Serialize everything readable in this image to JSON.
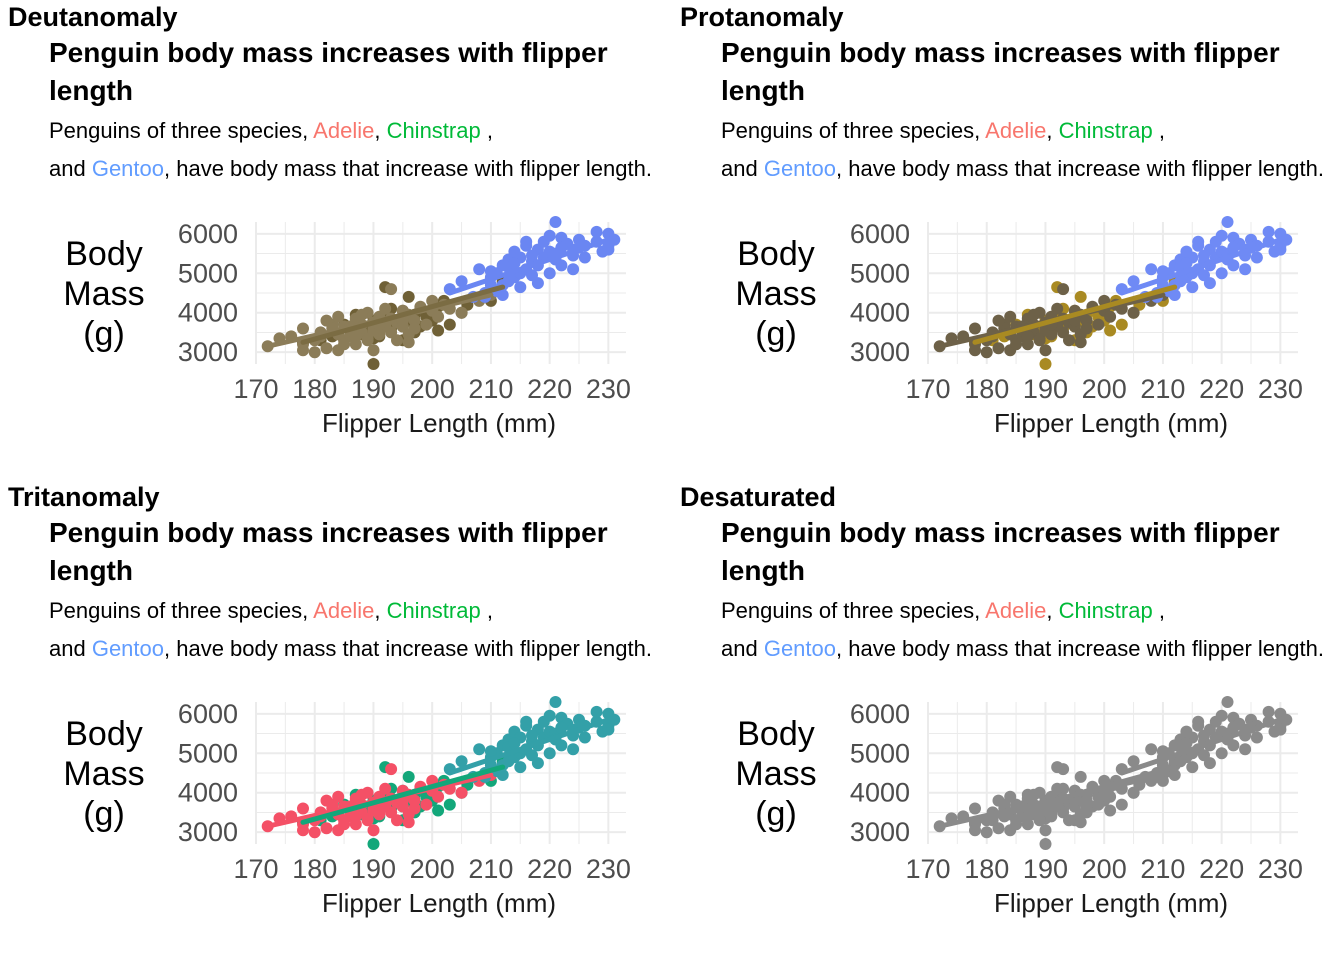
{
  "panels": [
    {
      "label": "Deutanomaly",
      "colors": {
        "adelie": "#8b7c58",
        "chinstrap": "#6f6036",
        "gentoo": "#6a86f2",
        "adelie_line": "#8b7c58",
        "chinstrap_line": "#7b6c43",
        "gentoo_line": "#6a86f2"
      }
    },
    {
      "label": "Protanomaly",
      "colors": {
        "adelie": "#6d6148",
        "chinstrap": "#a98a22",
        "gentoo": "#6f8af5",
        "adelie_line": "#6d6148",
        "chinstrap_line": "#a98a22",
        "gentoo_line": "#6f8af5"
      }
    },
    {
      "label": "Tritanomaly",
      "colors": {
        "adelie": "#f45066",
        "chinstrap": "#13a77a",
        "gentoo": "#33a0a8",
        "adelie_line": "#f45066",
        "chinstrap_line": "#13a77a",
        "gentoo_line": "#33a0a8"
      }
    },
    {
      "label": "Desaturated",
      "colors": {
        "adelie": "#8a8a8a",
        "chinstrap": "#8a8a8a",
        "gentoo": "#8a8a8a",
        "adelie_line": "#8a8a8a",
        "chinstrap_line": "#8a8a8a",
        "gentoo_line": "#8a8a8a"
      }
    }
  ],
  "plot": {
    "title": "Penguin body mass increases with flipper length",
    "subtitle_pre": "Penguins of three species, ",
    "adelie_label": "Adelie",
    "sep1": ", ",
    "chinstrap_label": "Chinstrap",
    "sep2": " ,",
    "and_label": "and ",
    "gentoo_label": "Gentoo",
    "subtitle_post": ", have body mass that increase with flipper length.",
    "species_colors": {
      "adelie": "#f8766d",
      "chinstrap": "#00ba38",
      "gentoo": "#619cff"
    },
    "ylabel": "Body\nMass\n(g)",
    "xlabel": "Flipper Length (mm)"
  },
  "chart_data": {
    "type": "scatter",
    "xlabel": "Flipper Length (mm)",
    "ylabel": "Body Mass (g)",
    "xlim": [
      170,
      233
    ],
    "ylim": [
      2700,
      6300
    ],
    "x_ticks": [
      170,
      180,
      190,
      200,
      210,
      220,
      230
    ],
    "y_ticks": [
      3000,
      4000,
      5000,
      6000
    ],
    "grid": true,
    "series": [
      {
        "name": "Adelie",
        "x": [
          172,
          174,
          176,
          178,
          178,
          180,
          181,
          182,
          183,
          184,
          184,
          185,
          185,
          186,
          186,
          187,
          187,
          188,
          188,
          189,
          189,
          190,
          190,
          190,
          191,
          191,
          192,
          192,
          193,
          193,
          194,
          195,
          195,
          196,
          196,
          197,
          198,
          199,
          200,
          201,
          202,
          203,
          205,
          208,
          210,
          181,
          183,
          186,
          189,
          192,
          195,
          184,
          187,
          190,
          193,
          196,
          180,
          182,
          185,
          188,
          191,
          194,
          197,
          200,
          178,
          186
        ],
        "y": [
          3150,
          3350,
          3400,
          3200,
          3600,
          3300,
          3500,
          3100,
          3700,
          3450,
          3900,
          3300,
          3650,
          3550,
          3400,
          3850,
          3200,
          3700,
          3500,
          4000,
          3350,
          3600,
          3750,
          3050,
          3450,
          3900,
          3650,
          4100,
          3500,
          3850,
          3750,
          4050,
          3650,
          3450,
          3950,
          3800,
          4150,
          3700,
          4050,
          3900,
          4200,
          4100,
          4000,
          4300,
          4450,
          3400,
          3600,
          3550,
          3300,
          3700,
          3800,
          3050,
          3400,
          3550,
          4600,
          3250,
          3000,
          3800,
          3200,
          3950,
          3700,
          3300,
          3600,
          4300,
          3050,
          3650
        ],
        "fit": [
          [
            172,
            3150
          ],
          [
            210,
            4450
          ]
        ]
      },
      {
        "name": "Chinstrap",
        "x": [
          178,
          181,
          183,
          185,
          187,
          187,
          188,
          189,
          190,
          190,
          191,
          192,
          193,
          193,
          194,
          195,
          195,
          196,
          196,
          197,
          197,
          198,
          198,
          199,
          200,
          201,
          201,
          202,
          203,
          205,
          206,
          210,
          212,
          190,
          195,
          192
        ],
        "y": [
          3250,
          3300,
          3400,
          3700,
          3550,
          3950,
          3450,
          3650,
          3800,
          3350,
          3400,
          3950,
          3600,
          4100,
          3750,
          3650,
          4050,
          3800,
          4400,
          3500,
          3950,
          4100,
          3650,
          3900,
          3800,
          4150,
          3550,
          4300,
          3700,
          4000,
          4200,
          4300,
          4800,
          2700,
          3300,
          4650
        ],
        "fit": [
          [
            178,
            3250
          ],
          [
            212,
            4650
          ]
        ]
      },
      {
        "name": "Gentoo",
        "x": [
          203,
          205,
          207,
          208,
          209,
          210,
          210,
          211,
          211,
          212,
          212,
          213,
          213,
          214,
          214,
          215,
          215,
          215,
          216,
          216,
          217,
          217,
          218,
          218,
          219,
          219,
          220,
          220,
          221,
          221,
          222,
          222,
          223,
          224,
          224,
          225,
          226,
          228,
          229,
          230,
          230,
          231,
          209,
          213,
          217,
          221,
          225,
          212,
          216,
          220,
          224,
          228,
          214,
          218,
          222,
          226,
          210,
          230
        ],
        "y": [
          4600,
          4800,
          4400,
          5100,
          4500,
          4900,
          4700,
          5000,
          4550,
          5200,
          4700,
          5350,
          4800,
          5550,
          4900,
          5000,
          5400,
          4650,
          5700,
          5100,
          5300,
          4950,
          5600,
          5200,
          5800,
          5400,
          5000,
          5550,
          6300,
          5500,
          5900,
          5200,
          5750,
          5600,
          5100,
          5850,
          5700,
          5800,
          5550,
          6000,
          5700,
          5850,
          4400,
          5150,
          5450,
          5350,
          5650,
          4450,
          5800,
          5950,
          5450,
          6050,
          5250,
          4750,
          5650,
          5400,
          5050,
          5600
        ],
        "fit": [
          [
            203,
            4500
          ],
          [
            231,
            5900
          ]
        ]
      }
    ]
  }
}
